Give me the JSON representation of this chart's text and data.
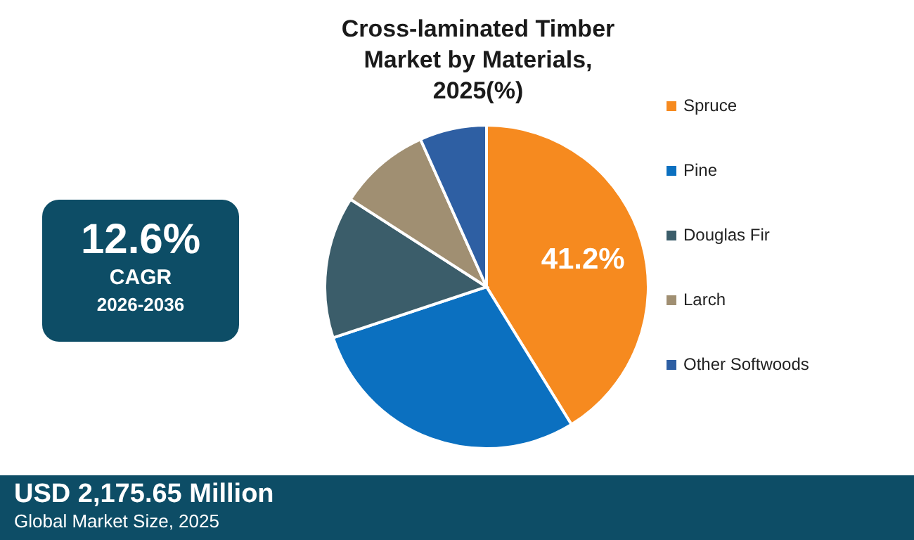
{
  "chart_data": {
    "type": "pie",
    "title": "Cross-laminated Timber Market by Materials, 2025(%)",
    "categories": [
      "Spruce",
      "Pine",
      "Douglas Fir",
      "Larch",
      "Other Softwoods"
    ],
    "values": [
      41.2,
      28.7,
      14.2,
      9.2,
      6.7
    ],
    "colors": [
      "#f68a1f",
      "#0b70c0",
      "#3b5d6a",
      "#a08f72",
      "#2e5fa3"
    ],
    "value_labels": [
      "41.2%",
      null,
      null,
      null,
      null
    ],
    "legend": "right",
    "annotations": [
      "12.6%",
      "CAGR",
      "2026-2036",
      "USD 2,175.65 Million",
      "Global Market Size, 2025"
    ]
  }
}
